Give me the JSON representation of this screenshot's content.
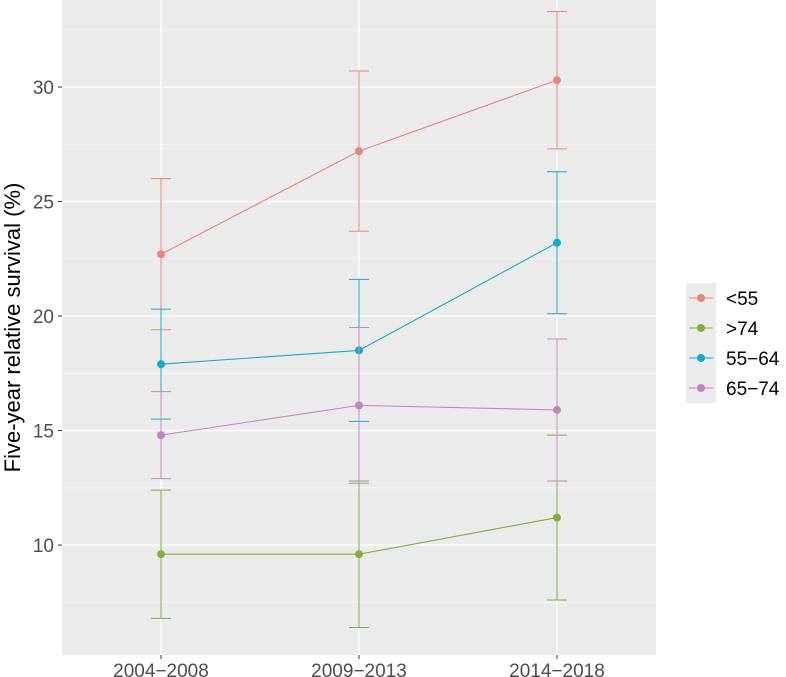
{
  "chart_data": {
    "type": "line",
    "title": "",
    "xlabel": "",
    "ylabel": "Five-year relative survival (%)",
    "categories": [
      "2004−2008",
      "2009−2013",
      "2014−2018"
    ],
    "ylim": [
      5.2,
      33.8
    ],
    "yticks": [
      10,
      15,
      20,
      25,
      30
    ],
    "grid": true,
    "error_bars": true,
    "legend": {
      "position": "right",
      "entries": [
        "<55",
        ">74",
        "55−64",
        "65−74"
      ]
    },
    "series": [
      {
        "name": "<55",
        "color": "#e7867a",
        "values": [
          22.7,
          27.2,
          30.3
        ],
        "lower": [
          19.4,
          23.7,
          27.3
        ],
        "upper": [
          26.0,
          30.7,
          33.3
        ]
      },
      {
        "name": ">74",
        "color": "#84ad3f",
        "values": [
          9.6,
          9.6,
          11.2
        ],
        "lower": [
          6.8,
          6.4,
          7.6
        ],
        "upper": [
          12.4,
          12.8,
          14.8
        ]
      },
      {
        "name": "55−64",
        "color": "#1aa9c8",
        "values": [
          17.9,
          18.5,
          23.2
        ],
        "lower": [
          15.5,
          15.4,
          20.1
        ],
        "upper": [
          20.3,
          21.6,
          26.3
        ]
      },
      {
        "name": "65−74",
        "color": "#c187bd",
        "values": [
          14.8,
          16.1,
          15.9
        ],
        "lower": [
          12.9,
          12.7,
          12.8
        ],
        "upper": [
          16.7,
          19.5,
          19.0
        ]
      }
    ]
  }
}
